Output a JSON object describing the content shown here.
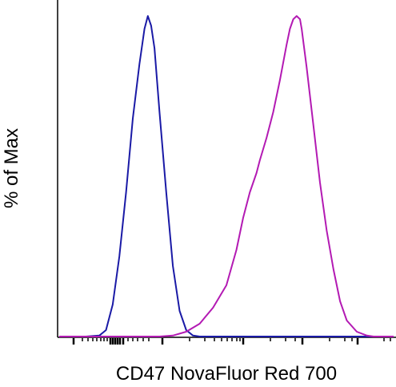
{
  "chart_data": {
    "type": "line",
    "title": "",
    "xlabel": "CD47 NovaFluor Red 700",
    "ylabel": "% of Max",
    "x_scale": "log (biexponential)",
    "y_range": [
      0,
      100
    ],
    "grid": false,
    "legend": "none",
    "series": [
      {
        "color": "#1a1aa6",
        "points": [
          [
            0.0,
            0
          ],
          [
            0.08,
            0
          ],
          [
            0.12,
            0.3
          ],
          [
            0.14,
            2
          ],
          [
            0.16,
            10
          ],
          [
            0.18,
            25
          ],
          [
            0.2,
            45
          ],
          [
            0.22,
            68
          ],
          [
            0.24,
            85
          ],
          [
            0.255,
            96
          ],
          [
            0.265,
            100
          ],
          [
            0.275,
            97
          ],
          [
            0.285,
            90
          ],
          [
            0.3,
            70
          ],
          [
            0.32,
            45
          ],
          [
            0.34,
            22
          ],
          [
            0.36,
            8
          ],
          [
            0.38,
            2
          ],
          [
            0.4,
            0.3
          ],
          [
            0.42,
            0
          ],
          [
            1.0,
            0
          ]
        ]
      },
      {
        "color": "#b31ab3",
        "points": [
          [
            0.0,
            0
          ],
          [
            0.3,
            0
          ],
          [
            0.34,
            0.3
          ],
          [
            0.38,
            1.5
          ],
          [
            0.42,
            4
          ],
          [
            0.46,
            9
          ],
          [
            0.5,
            16
          ],
          [
            0.53,
            27
          ],
          [
            0.55,
            37
          ],
          [
            0.57,
            45
          ],
          [
            0.59,
            51
          ],
          [
            0.6,
            55
          ],
          [
            0.62,
            62
          ],
          [
            0.64,
            70
          ],
          [
            0.66,
            80
          ],
          [
            0.68,
            91
          ],
          [
            0.69,
            96
          ],
          [
            0.7,
            99
          ],
          [
            0.71,
            100
          ],
          [
            0.72,
            99
          ],
          [
            0.725,
            96
          ],
          [
            0.74,
            84
          ],
          [
            0.76,
            66
          ],
          [
            0.78,
            48
          ],
          [
            0.8,
            33
          ],
          [
            0.82,
            21
          ],
          [
            0.84,
            11
          ],
          [
            0.86,
            5
          ],
          [
            0.89,
            1.5
          ],
          [
            0.92,
            0.3
          ],
          [
            0.94,
            0
          ],
          [
            1.0,
            0
          ]
        ]
      }
    ]
  }
}
